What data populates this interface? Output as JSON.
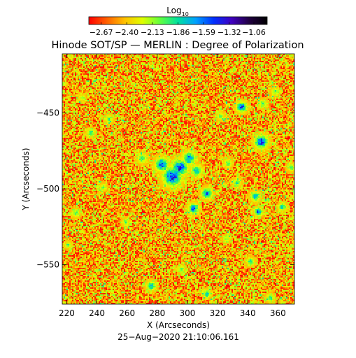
{
  "chart_data": {
    "type": "heatmap",
    "title": "Hinode SOT/SP — MERLIN : Degree of Polarization",
    "xlabel": "X (Arcseconds)",
    "ylabel": "Y (Arcseconds)",
    "timestamp": "25−Aug−2020 21:10:06.161",
    "xlim": [
      217,
      371
    ],
    "ylim": [
      -576,
      -411
    ],
    "x_ticks": [
      220,
      240,
      260,
      280,
      300,
      320,
      340,
      360
    ],
    "x_tick_labels": [
      "220",
      "240",
      "260",
      "280",
      "300",
      "320",
      "340",
      "360"
    ],
    "y_ticks": [
      -450,
      -500,
      -550
    ],
    "y_tick_labels": [
      "−450",
      "−500",
      "−550"
    ],
    "colorbar": {
      "label_base": "Log",
      "label_sub": "10",
      "range": [
        -2.8,
        -0.92
      ],
      "ticks": [
        -2.67,
        -2.4,
        -2.13,
        -1.86,
        -1.59,
        -1.32,
        -1.06
      ],
      "tick_labels": [
        "−2.67",
        "−2.40",
        "−2.13",
        "−1.86",
        "−1.59",
        "−1.32",
        "−1.06"
      ],
      "colors": [
        "#ff0000",
        "#ff6000",
        "#ffc000",
        "#e0ff00",
        "#60ff40",
        "#00e0a0",
        "#00a0ff",
        "#0030ff",
        "#4000c0",
        "#200040",
        "#000000"
      ]
    },
    "field": {
      "background_level": -2.45,
      "noise_amplitude": 0.35,
      "patches": [
        {
          "x": 290,
          "y": -492,
          "level": -1.4,
          "size": 3.5
        },
        {
          "x": 295,
          "y": -486,
          "level": -1.45,
          "size": 3.0
        },
        {
          "x": 301,
          "y": -480,
          "level": -1.6,
          "size": 2.5
        },
        {
          "x": 283,
          "y": -484,
          "level": -1.5,
          "size": 2.5
        },
        {
          "x": 306,
          "y": -488,
          "level": -1.7,
          "size": 2.0
        },
        {
          "x": 349,
          "y": -469,
          "level": -1.45,
          "size": 2.5
        },
        {
          "x": 313,
          "y": -503,
          "level": -1.55,
          "size": 2.0
        },
        {
          "x": 304,
          "y": -513,
          "level": -1.6,
          "size": 2.0
        },
        {
          "x": 336,
          "y": -446,
          "level": -1.55,
          "size": 2.0
        },
        {
          "x": 345,
          "y": -505,
          "level": -1.7,
          "size": 1.8
        },
        {
          "x": 347,
          "y": -515,
          "level": -1.5,
          "size": 1.5
        },
        {
          "x": 363,
          "y": -512,
          "level": -1.8,
          "size": 1.5
        },
        {
          "x": 270,
          "y": -480,
          "level": -1.9,
          "size": 1.8
        },
        {
          "x": 327,
          "y": -483,
          "level": -1.95,
          "size": 1.5
        },
        {
          "x": 333,
          "y": -496,
          "level": -1.9,
          "size": 1.5
        },
        {
          "x": 276,
          "y": -564,
          "level": -1.8,
          "size": 1.8
        },
        {
          "x": 313,
          "y": -569,
          "level": -1.85,
          "size": 1.5
        },
        {
          "x": 355,
          "y": -572,
          "level": -1.85,
          "size": 1.5
        },
        {
          "x": 236,
          "y": -463,
          "level": -1.9,
          "size": 1.5
        },
        {
          "x": 248,
          "y": -454,
          "level": -2.0,
          "size": 1.5
        },
        {
          "x": 226,
          "y": -516,
          "level": -1.95,
          "size": 1.5
        },
        {
          "x": 221,
          "y": -537,
          "level": -1.95,
          "size": 1.2
        },
        {
          "x": 350,
          "y": -444,
          "level": -1.95,
          "size": 1.5
        },
        {
          "x": 342,
          "y": -548,
          "level": -1.9,
          "size": 1.5
        },
        {
          "x": 259,
          "y": -522,
          "level": -2.0,
          "size": 1.3
        },
        {
          "x": 369,
          "y": -486,
          "level": -2.0,
          "size": 1.5
        },
        {
          "x": 358,
          "y": -436,
          "level": -2.05,
          "size": 1.5
        },
        {
          "x": 322,
          "y": -452,
          "level": -2.05,
          "size": 1.5
        },
        {
          "x": 244,
          "y": -499,
          "level": -2.05,
          "size": 1.3
        },
        {
          "x": 230,
          "y": -440,
          "level": -2.1,
          "size": 1.3
        },
        {
          "x": 296,
          "y": -553,
          "level": -2.0,
          "size": 1.3
        },
        {
          "x": 326,
          "y": -533,
          "level": -2.05,
          "size": 1.3
        }
      ]
    }
  }
}
